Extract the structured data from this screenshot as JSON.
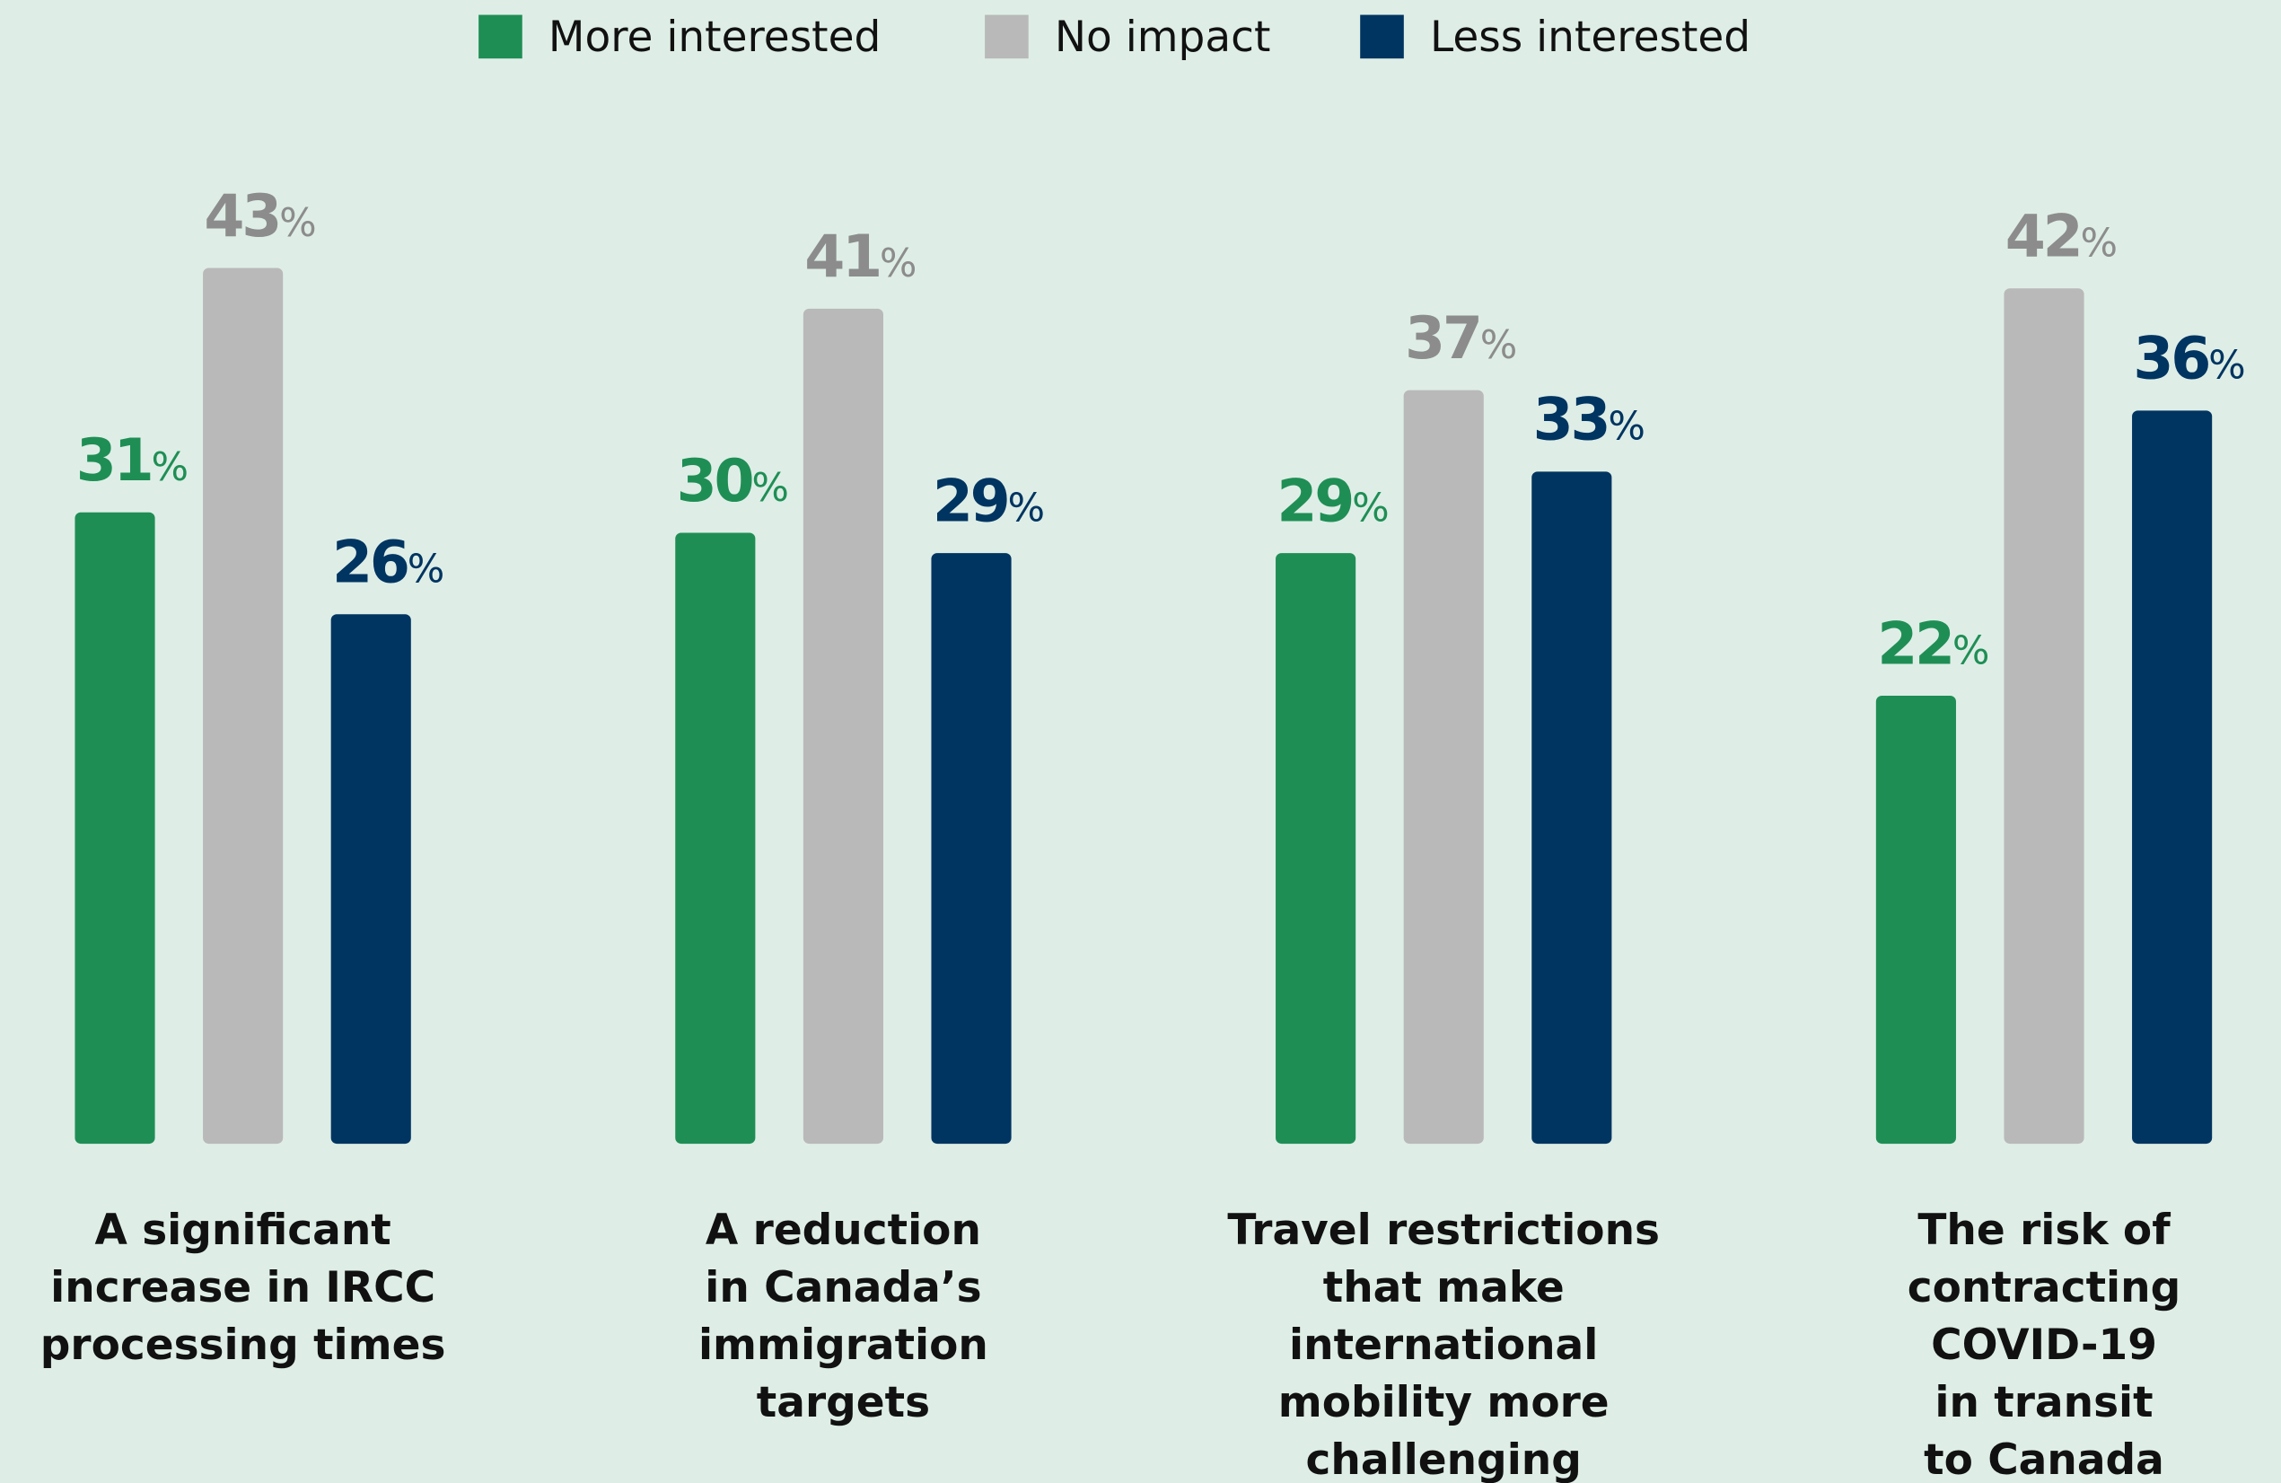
{
  "chart_data": {
    "type": "bar",
    "categories": [
      [
        "A significant",
        "increase in IRCC",
        "processing times"
      ],
      [
        "A reduction",
        "in Canada’s",
        "immigration",
        "targets"
      ],
      [
        "Travel restrictions",
        "that make",
        "international",
        "mobility more",
        "challenging"
      ],
      [
        "The risk of",
        "contracting",
        "COVID-19",
        "in transit",
        "to Canada"
      ]
    ],
    "series": [
      {
        "name": "More interested",
        "color": "#1f8e55",
        "label_color": "#1f8e55",
        "values": [
          31,
          30,
          29,
          22
        ],
        "value_labels": [
          "31%",
          "30%",
          "29%",
          "22%"
        ]
      },
      {
        "name": "No impact",
        "color": "#b9b9b9",
        "label_color": "#8c8c8c",
        "values": [
          43,
          41,
          37,
          42
        ],
        "value_labels": [
          "43%",
          "41%",
          "37%",
          "42%"
        ]
      },
      {
        "name": "Less interested",
        "color": "#003461",
        "label_color": "#003461",
        "values": [
          26,
          29,
          33,
          36
        ],
        "value_labels": [
          "26%",
          "29%",
          "33%",
          "36%"
        ]
      }
    ],
    "ylim": [
      0,
      50
    ],
    "legend": "top"
  }
}
